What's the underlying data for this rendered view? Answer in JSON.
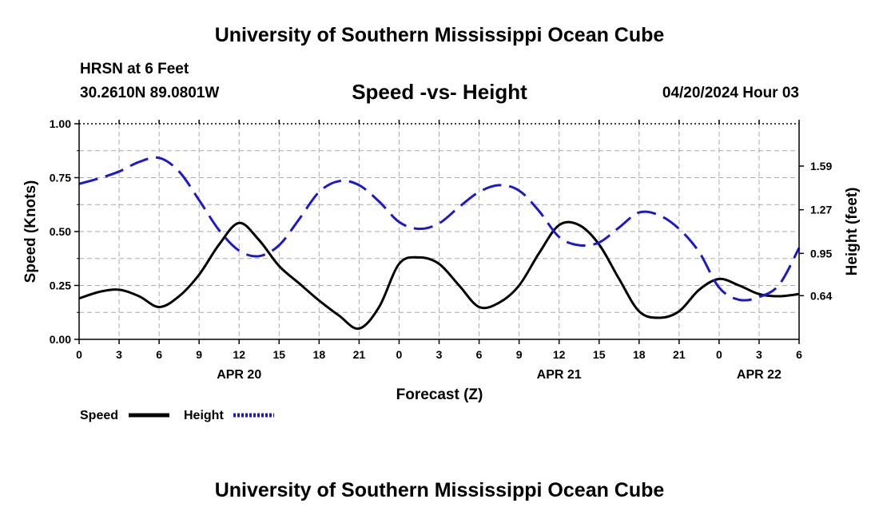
{
  "header": {
    "title": "University of Southern Mississippi Ocean Cube",
    "station": "HRSN at 6 Feet",
    "coordinates": "30.2610N  89.0801W",
    "subtitle": "Speed -vs- Height",
    "datetime": "04/20/2024 Hour 03"
  },
  "footer": {
    "title": "University of Southern Mississippi Ocean Cube"
  },
  "colors": {
    "speed": "#000000",
    "height": "#1a1acc",
    "grid": "#aaaaaa"
  },
  "chart_data": {
    "type": "line",
    "title": "Speed -vs- Height",
    "xlabel": "Forecast (Z)",
    "ylabel": "Speed (Knots)",
    "y2label": "Height (feet)",
    "xlim": [
      0,
      54
    ],
    "ylim": [
      0,
      1
    ],
    "y2lim": [
      0.32,
      1.9
    ],
    "x_tick_values": [
      0,
      3,
      6,
      9,
      12,
      15,
      18,
      21,
      24,
      27,
      30,
      33,
      36,
      39,
      42,
      45,
      48,
      51,
      54
    ],
    "x_tick_labels": [
      "0",
      "3",
      "6",
      "9",
      "12",
      "15",
      "18",
      "21",
      "0",
      "3",
      "6",
      "9",
      "12",
      "15",
      "18",
      "21",
      "0",
      "3",
      "6"
    ],
    "date_labels": [
      {
        "x": 12,
        "label": "APR 20"
      },
      {
        "x": 36,
        "label": "APR 21"
      },
      {
        "x": 51,
        "label": "APR 22"
      }
    ],
    "y_ticks": [
      0,
      0.25,
      0.5,
      0.75,
      1
    ],
    "y_tick_labels": [
      "0.00",
      "0.25",
      "0.50",
      "0.75",
      "1.00"
    ],
    "y2_ticks": [
      0.64,
      0.95,
      1.27,
      1.59
    ],
    "y2_tick_labels": [
      "0.64",
      "0.95",
      "1.27",
      "1.59"
    ],
    "grid": true,
    "series": [
      {
        "name": "Speed",
        "axis": "left",
        "style": "solid",
        "x": [
          0,
          1.5,
          3,
          4.5,
          6,
          7.5,
          9,
          10.5,
          12,
          13.5,
          15,
          16.5,
          18,
          19.5,
          21,
          22.5,
          24,
          25.5,
          27,
          28.5,
          30,
          31.5,
          33,
          34.5,
          36,
          37.5,
          39,
          40.5,
          42,
          43.5,
          45,
          46.5,
          48,
          49.5,
          51,
          52.5,
          54
        ],
        "values": [
          0.19,
          0.22,
          0.23,
          0.2,
          0.15,
          0.2,
          0.3,
          0.44,
          0.54,
          0.46,
          0.34,
          0.26,
          0.18,
          0.11,
          0.05,
          0.15,
          0.35,
          0.38,
          0.35,
          0.25,
          0.15,
          0.17,
          0.25,
          0.4,
          0.53,
          0.53,
          0.44,
          0.28,
          0.13,
          0.1,
          0.13,
          0.23,
          0.28,
          0.25,
          0.21,
          0.2,
          0.21
        ]
      },
      {
        "name": "Height",
        "axis": "right",
        "style": "dashed",
        "x": [
          0,
          1.5,
          3,
          4.5,
          6,
          7.5,
          9,
          10.5,
          12,
          13.5,
          15,
          16.5,
          18,
          19.5,
          21,
          22.5,
          24,
          25.5,
          27,
          28.5,
          30,
          31.5,
          33,
          34.5,
          36,
          37.5,
          39,
          40.5,
          42,
          43.5,
          45,
          46.5,
          48,
          49.5,
          51,
          52.5,
          54
        ],
        "values": [
          1.46,
          1.5,
          1.55,
          1.62,
          1.65,
          1.55,
          1.34,
          1.12,
          0.97,
          0.93,
          1.01,
          1.2,
          1.4,
          1.48,
          1.45,
          1.33,
          1.18,
          1.13,
          1.17,
          1.29,
          1.4,
          1.45,
          1.41,
          1.26,
          1.07,
          1.01,
          1.03,
          1.14,
          1.25,
          1.23,
          1.13,
          0.96,
          0.7,
          0.61,
          0.63,
          0.72,
          0.99
        ]
      }
    ],
    "legend": [
      {
        "label": "Speed",
        "series": "Speed"
      },
      {
        "label": "Height",
        "series": "Height"
      }
    ],
    "legend_position": "bottom-left"
  }
}
